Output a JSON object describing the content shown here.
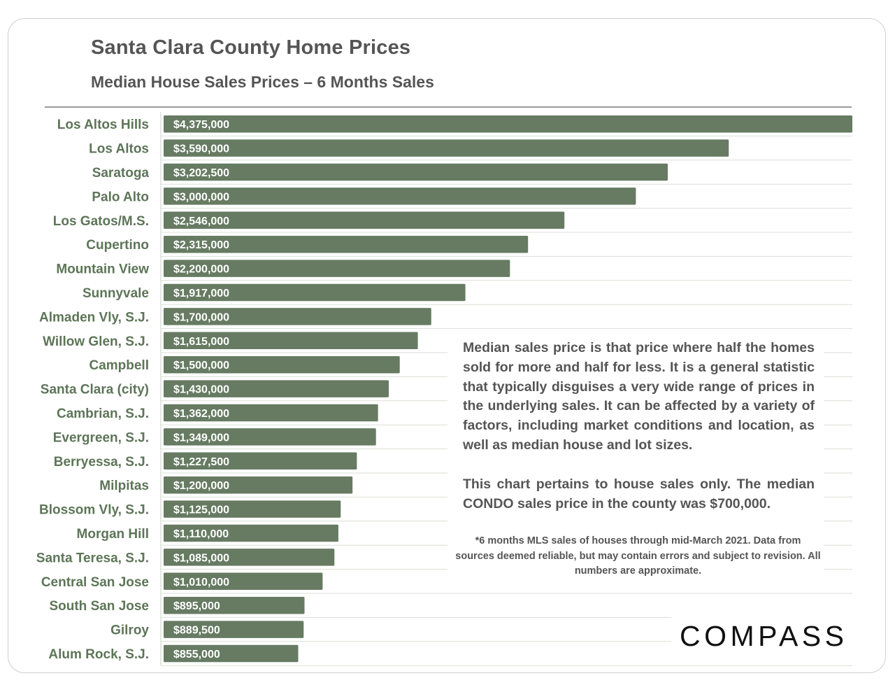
{
  "chart_data": {
    "type": "bar",
    "orientation": "horizontal",
    "title": "Santa Clara County Home Prices",
    "subtitle": "Median House Sales Prices – 6 Months Sales",
    "categories": [
      "Los Altos Hills",
      "Los Altos",
      "Saratoga",
      "Palo Alto",
      "Los Gatos/M.S.",
      "Cupertino",
      "Mountain View",
      "Sunnyvale",
      "Almaden Vly, S.J.",
      "Willow Glen, S.J.",
      "Campbell",
      "Santa Clara (city)",
      "Cambrian, S.J.",
      "Evergreen, S.J.",
      "Berryessa, S.J.",
      "Milpitas",
      "Blossom Vly, S.J.",
      "Morgan Hill",
      "Santa Teresa, S.J.",
      "Central San Jose",
      "South San Jose",
      "Gilroy",
      "Alum Rock, S.J."
    ],
    "values": [
      4375000,
      3590000,
      3202500,
      3000000,
      2546000,
      2315000,
      2200000,
      1917000,
      1700000,
      1615000,
      1500000,
      1430000,
      1362000,
      1349000,
      1227500,
      1200000,
      1125000,
      1110000,
      1085000,
      1010000,
      895000,
      889500,
      855000
    ],
    "value_labels": [
      "$4,375,000",
      "$3,590,000",
      "$3,202,500",
      "$3,000,000",
      "$2,546,000",
      "$2,315,000",
      "$2,200,000",
      "$1,917,000",
      "$1,700,000",
      "$1,615,000",
      "$1,500,000",
      "$1,430,000",
      "$1,362,000",
      "$1,349,000",
      "$1,227,500",
      "$1,200,000",
      "$1,125,000",
      "$1,110,000",
      "$1,085,000",
      "$1,010,000",
      "$895,000",
      "$889,500",
      "$855,000"
    ],
    "xlim": [
      0,
      4375000
    ],
    "xlabel": "",
    "ylabel": "",
    "grid": true
  },
  "notes": {
    "paragraph1": "Median sales price is that price where half the homes sold for more and half for less. It is a general statistic that typically disguises a very wide range of prices in the underlying sales. It can be affected by a variety of factors, including market conditions and location, as well as median house and lot sizes.",
    "paragraph2": "This chart pertains to house sales only. The median CONDO sales price in the county was $700,000.",
    "footnote": "*6 months MLS sales of houses through mid-March 2021. Data from sources deemed reliable, but may contain errors and subject to revision. All numbers are approximate."
  },
  "brand": {
    "logo_text": "COMPASS"
  },
  "colors": {
    "bar": "#667b62",
    "category_text": "#5d7558",
    "heading_text": "#555555",
    "gridline": "#d9dfd6"
  }
}
